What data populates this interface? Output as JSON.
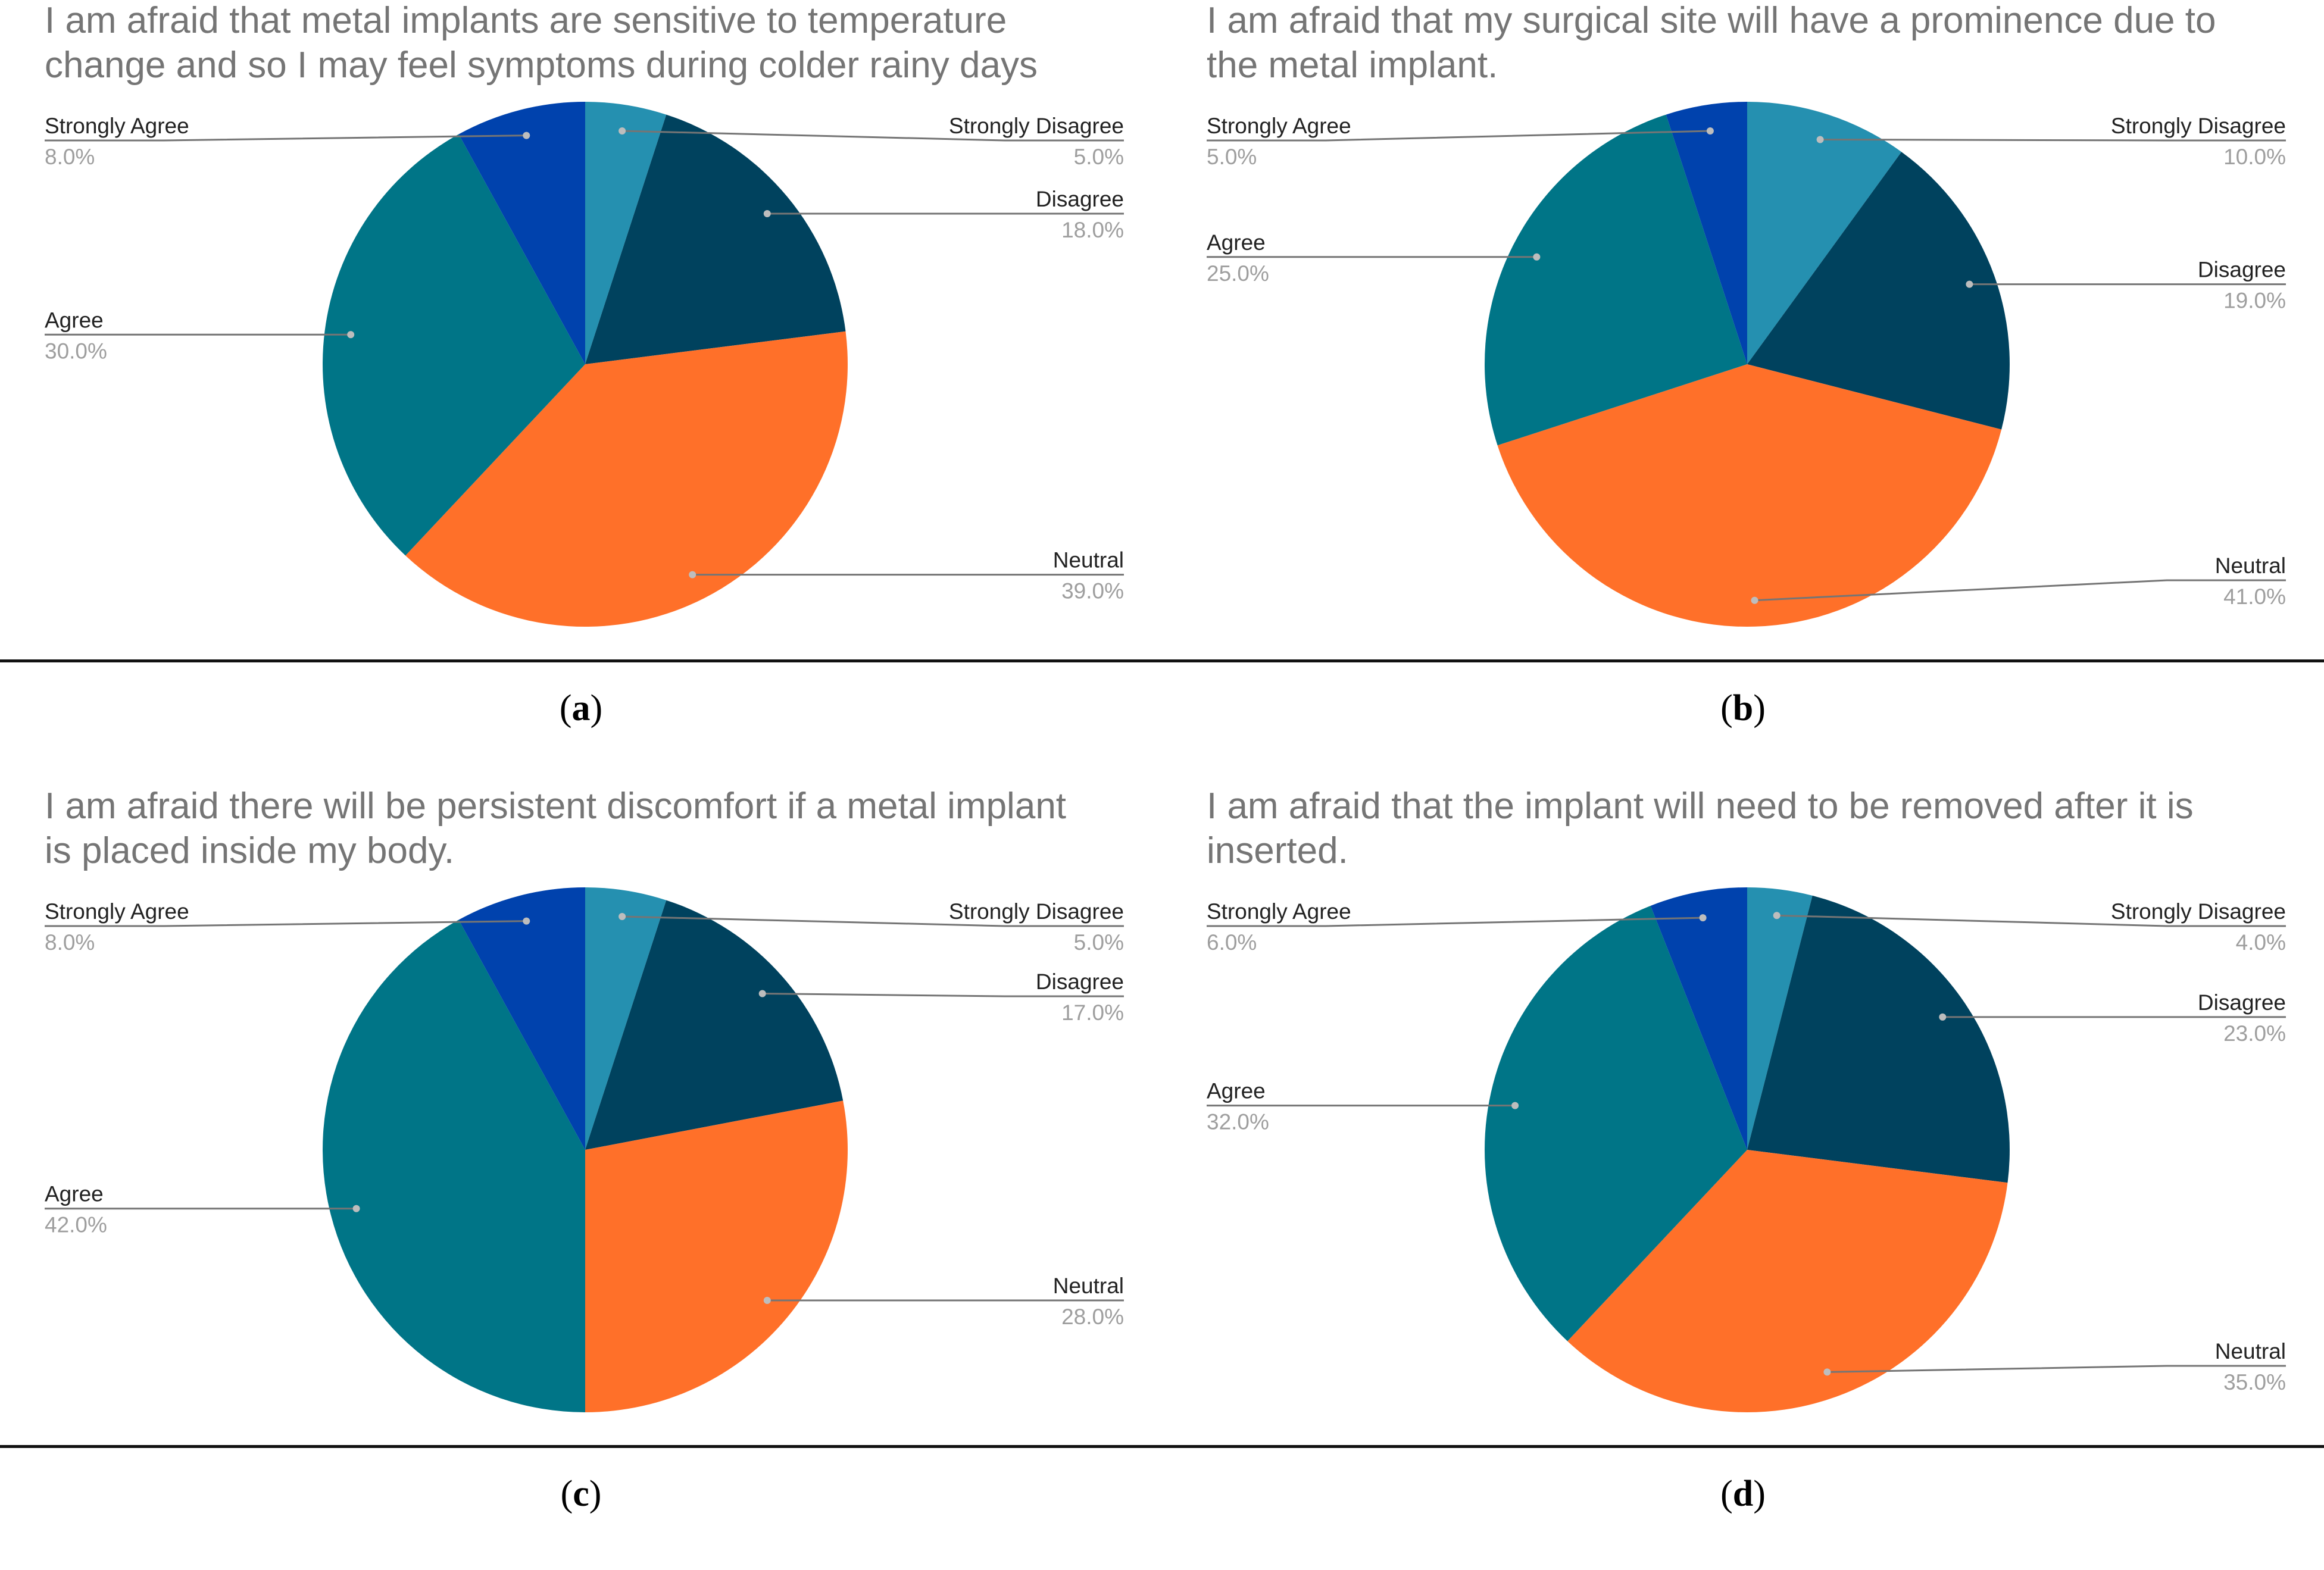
{
  "colors": {
    "Strongly Disagree": "#2590b0",
    "Disagree": "#00425e",
    "Neutral": "#ff7029",
    "Agree": "#007587",
    "Strongly Agree": "#0042ad",
    "leader": "#757575",
    "dot": "#bdbdbd"
  },
  "chart_data": [
    {
      "type": "pie",
      "panel_label": "a",
      "title_lines": [
        "I am afraid that metal implants are sensitive to temperature",
        "change and so I may feel symptoms during colder rainy days"
      ],
      "slices": [
        {
          "label": "Strongly Disagree",
          "value": 5,
          "pct_label": "5.0%"
        },
        {
          "label": "Disagree",
          "value": 18,
          "pct_label": "18.0%"
        },
        {
          "label": "Neutral",
          "value": 39,
          "pct_label": "39.0%"
        },
        {
          "label": "Agree",
          "value": 30,
          "pct_label": "30.0%"
        },
        {
          "label": "Strongly Agree",
          "value": 8,
          "pct_label": "8.0%"
        }
      ]
    },
    {
      "type": "pie",
      "panel_label": "b",
      "title_lines": [
        "I am afraid that my surgical site will have a prominence due to",
        "the metal implant."
      ],
      "slices": [
        {
          "label": "Strongly Disagree",
          "value": 10,
          "pct_label": "10.0%"
        },
        {
          "label": "Disagree",
          "value": 19,
          "pct_label": "19.0%"
        },
        {
          "label": "Neutral",
          "value": 41,
          "pct_label": "41.0%"
        },
        {
          "label": "Agree",
          "value": 25,
          "pct_label": "25.0%"
        },
        {
          "label": "Strongly Agree",
          "value": 5,
          "pct_label": "5.0%"
        }
      ]
    },
    {
      "type": "pie",
      "panel_label": "c",
      "title_lines": [
        "I am afraid there will be persistent discomfort if a metal implant",
        "is placed inside my body."
      ],
      "slices": [
        {
          "label": "Strongly Disagree",
          "value": 5,
          "pct_label": "5.0%"
        },
        {
          "label": "Disagree",
          "value": 17,
          "pct_label": "17.0%"
        },
        {
          "label": "Neutral",
          "value": 28,
          "pct_label": "28.0%"
        },
        {
          "label": "Agree",
          "value": 42,
          "pct_label": "42.0%"
        },
        {
          "label": "Strongly Agree",
          "value": 8,
          "pct_label": "8.0%"
        }
      ]
    },
    {
      "type": "pie",
      "panel_label": "d",
      "title_lines": [
        "I am afraid that the implant will need to be removed after it is",
        "inserted."
      ],
      "slices": [
        {
          "label": "Strongly Disagree",
          "value": 4,
          "pct_label": "4.0%"
        },
        {
          "label": "Disagree",
          "value": 23,
          "pct_label": "23.0%"
        },
        {
          "label": "Neutral",
          "value": 35,
          "pct_label": "35.0%"
        },
        {
          "label": "Agree",
          "value": 32,
          "pct_label": "32.0%"
        },
        {
          "label": "Strongly Agree",
          "value": 6,
          "pct_label": "6.0%"
        }
      ]
    }
  ]
}
